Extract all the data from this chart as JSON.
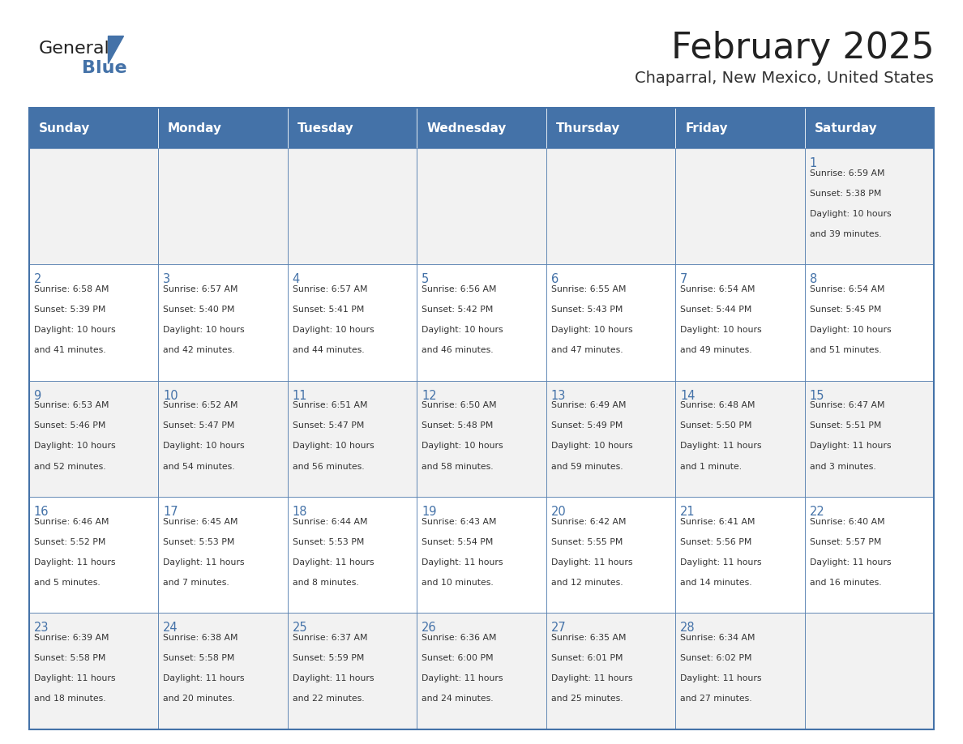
{
  "title": "February 2025",
  "subtitle": "Chaparral, New Mexico, United States",
  "header_bg": "#4472A8",
  "header_text": "#FFFFFF",
  "row_bg_odd": "#F2F2F2",
  "row_bg_even": "#FFFFFF",
  "border_color": "#4472A8",
  "day_headers": [
    "Sunday",
    "Monday",
    "Tuesday",
    "Wednesday",
    "Thursday",
    "Friday",
    "Saturday"
  ],
  "title_color": "#222222",
  "subtitle_color": "#333333",
  "cell_text_color": "#333333",
  "day_number_color": "#4472A8",
  "calendar": [
    [
      null,
      null,
      null,
      null,
      null,
      null,
      {
        "day": 1,
        "sunrise": "6:59 AM",
        "sunset": "5:38 PM",
        "daylight": "10 hours and 39 minutes."
      }
    ],
    [
      {
        "day": 2,
        "sunrise": "6:58 AM",
        "sunset": "5:39 PM",
        "daylight": "10 hours and 41 minutes."
      },
      {
        "day": 3,
        "sunrise": "6:57 AM",
        "sunset": "5:40 PM",
        "daylight": "10 hours and 42 minutes."
      },
      {
        "day": 4,
        "sunrise": "6:57 AM",
        "sunset": "5:41 PM",
        "daylight": "10 hours and 44 minutes."
      },
      {
        "day": 5,
        "sunrise": "6:56 AM",
        "sunset": "5:42 PM",
        "daylight": "10 hours and 46 minutes."
      },
      {
        "day": 6,
        "sunrise": "6:55 AM",
        "sunset": "5:43 PM",
        "daylight": "10 hours and 47 minutes."
      },
      {
        "day": 7,
        "sunrise": "6:54 AM",
        "sunset": "5:44 PM",
        "daylight": "10 hours and 49 minutes."
      },
      {
        "day": 8,
        "sunrise": "6:54 AM",
        "sunset": "5:45 PM",
        "daylight": "10 hours and 51 minutes."
      }
    ],
    [
      {
        "day": 9,
        "sunrise": "6:53 AM",
        "sunset": "5:46 PM",
        "daylight": "10 hours and 52 minutes."
      },
      {
        "day": 10,
        "sunrise": "6:52 AM",
        "sunset": "5:47 PM",
        "daylight": "10 hours and 54 minutes."
      },
      {
        "day": 11,
        "sunrise": "6:51 AM",
        "sunset": "5:47 PM",
        "daylight": "10 hours and 56 minutes."
      },
      {
        "day": 12,
        "sunrise": "6:50 AM",
        "sunset": "5:48 PM",
        "daylight": "10 hours and 58 minutes."
      },
      {
        "day": 13,
        "sunrise": "6:49 AM",
        "sunset": "5:49 PM",
        "daylight": "10 hours and 59 minutes."
      },
      {
        "day": 14,
        "sunrise": "6:48 AM",
        "sunset": "5:50 PM",
        "daylight": "11 hours and 1 minute."
      },
      {
        "day": 15,
        "sunrise": "6:47 AM",
        "sunset": "5:51 PM",
        "daylight": "11 hours and 3 minutes."
      }
    ],
    [
      {
        "day": 16,
        "sunrise": "6:46 AM",
        "sunset": "5:52 PM",
        "daylight": "11 hours and 5 minutes."
      },
      {
        "day": 17,
        "sunrise": "6:45 AM",
        "sunset": "5:53 PM",
        "daylight": "11 hours and 7 minutes."
      },
      {
        "day": 18,
        "sunrise": "6:44 AM",
        "sunset": "5:53 PM",
        "daylight": "11 hours and 8 minutes."
      },
      {
        "day": 19,
        "sunrise": "6:43 AM",
        "sunset": "5:54 PM",
        "daylight": "11 hours and 10 minutes."
      },
      {
        "day": 20,
        "sunrise": "6:42 AM",
        "sunset": "5:55 PM",
        "daylight": "11 hours and 12 minutes."
      },
      {
        "day": 21,
        "sunrise": "6:41 AM",
        "sunset": "5:56 PM",
        "daylight": "11 hours and 14 minutes."
      },
      {
        "day": 22,
        "sunrise": "6:40 AM",
        "sunset": "5:57 PM",
        "daylight": "11 hours and 16 minutes."
      }
    ],
    [
      {
        "day": 23,
        "sunrise": "6:39 AM",
        "sunset": "5:58 PM",
        "daylight": "11 hours and 18 minutes."
      },
      {
        "day": 24,
        "sunrise": "6:38 AM",
        "sunset": "5:58 PM",
        "daylight": "11 hours and 20 minutes."
      },
      {
        "day": 25,
        "sunrise": "6:37 AM",
        "sunset": "5:59 PM",
        "daylight": "11 hours and 22 minutes."
      },
      {
        "day": 26,
        "sunrise": "6:36 AM",
        "sunset": "6:00 PM",
        "daylight": "11 hours and 24 minutes."
      },
      {
        "day": 27,
        "sunrise": "6:35 AM",
        "sunset": "6:01 PM",
        "daylight": "11 hours and 25 minutes."
      },
      {
        "day": 28,
        "sunrise": "6:34 AM",
        "sunset": "6:02 PM",
        "daylight": "11 hours and 27 minutes."
      },
      null
    ]
  ]
}
